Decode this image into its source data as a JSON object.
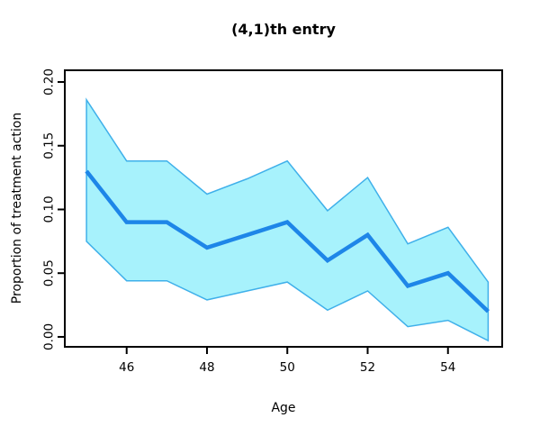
{
  "chart_data": {
    "type": "line",
    "title": "(4,1)th entry",
    "xlabel": "Age",
    "ylabel": "Proportion of treatment action",
    "x": [
      45,
      46,
      47,
      48,
      49,
      50,
      51,
      52,
      53,
      54,
      55
    ],
    "series": [
      {
        "name": "mean",
        "role": "line",
        "values": [
          0.13,
          0.09,
          0.09,
          0.07,
          0.08,
          0.09,
          0.06,
          0.08,
          0.04,
          0.05,
          0.02
        ]
      },
      {
        "name": "upper_ci",
        "role": "band_upper",
        "values": [
          0.186,
          0.138,
          0.138,
          0.112,
          0.124,
          0.138,
          0.099,
          0.125,
          0.073,
          0.086,
          0.043
        ]
      },
      {
        "name": "lower_ci",
        "role": "band_lower",
        "values": [
          0.075,
          0.044,
          0.044,
          0.029,
          0.036,
          0.043,
          0.021,
          0.036,
          0.008,
          0.013,
          -0.003
        ]
      }
    ],
    "x_tick_labels": [
      "46",
      "48",
      "50",
      "52",
      "54"
    ],
    "x_tick_values": [
      46,
      48,
      50,
      52,
      54
    ],
    "y_tick_labels": [
      "0.00",
      "0.05",
      "0.10",
      "0.15",
      "0.20"
    ],
    "y_tick_values": [
      0.0,
      0.05,
      0.1,
      0.15,
      0.2
    ],
    "xlim": [
      44.46,
      55.35
    ],
    "ylim": [
      -0.0078,
      0.2092
    ],
    "grid": false,
    "legend": false,
    "colors": {
      "line": "#1e86e8",
      "band_fill": "#a7f2fc",
      "band_edge": "#3fb0ea",
      "axis": "#000000"
    }
  }
}
